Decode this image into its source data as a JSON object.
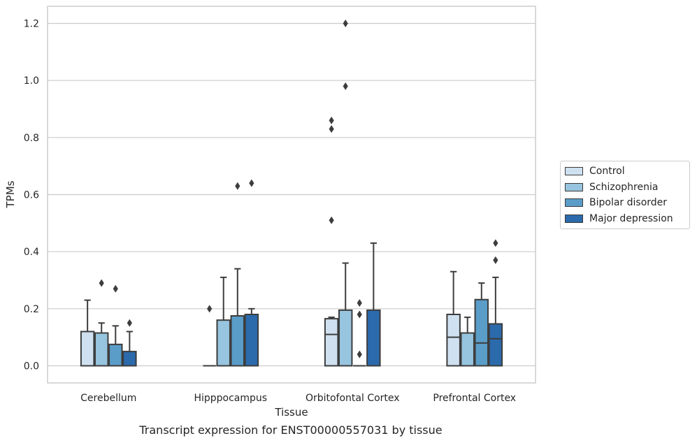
{
  "caption": "Transcript expression for ENST00000557031 by tissue",
  "chart_data": {
    "type": "box",
    "xlabel": "Tissue",
    "ylabel": "TPMs",
    "ylim": [
      -0.06,
      1.26
    ],
    "yticks": [
      0.0,
      0.2,
      0.4,
      0.6,
      0.8,
      1.0,
      1.2
    ],
    "ytick_labels": [
      "0.0",
      "0.2",
      "0.4",
      "0.6",
      "0.8",
      "1.0",
      "1.2"
    ],
    "grid": "horizontal",
    "legend_position": "right",
    "categories": [
      "Cerebellum",
      "Hipppocampus",
      "Orbitofontal Cortex",
      "Prefrontal Cortex"
    ],
    "series": [
      {
        "name": "Control",
        "color": "#cfe1f0",
        "boxes": [
          {
            "q1": 0.0,
            "median": 0.0,
            "q3": 0.12,
            "whisker_low": 0.0,
            "whisker_high": 0.23,
            "outliers": []
          },
          {
            "q1": 0.0,
            "median": 0.0,
            "q3": 0.0,
            "whisker_low": 0.0,
            "whisker_high": 0.0,
            "outliers": [
              0.2
            ]
          },
          {
            "q1": 0.0,
            "median": 0.11,
            "q3": 0.165,
            "whisker_low": 0.0,
            "whisker_high": 0.17,
            "outliers": [
              0.51,
              0.83,
              0.86
            ]
          },
          {
            "q1": 0.0,
            "median": 0.1,
            "q3": 0.18,
            "whisker_low": 0.0,
            "whisker_high": 0.33,
            "outliers": []
          }
        ]
      },
      {
        "name": "Schizophrenia",
        "color": "#97c4de",
        "boxes": [
          {
            "q1": 0.0,
            "median": 0.0,
            "q3": 0.115,
            "whisker_low": 0.0,
            "whisker_high": 0.15,
            "outliers": [
              0.29
            ]
          },
          {
            "q1": 0.0,
            "median": 0.0,
            "q3": 0.16,
            "whisker_low": 0.0,
            "whisker_high": 0.31,
            "outliers": []
          },
          {
            "q1": 0.0,
            "median": 0.0,
            "q3": 0.195,
            "whisker_low": 0.0,
            "whisker_high": 0.36,
            "outliers": [
              0.98,
              1.2
            ]
          },
          {
            "q1": 0.0,
            "median": 0.0,
            "q3": 0.115,
            "whisker_low": 0.0,
            "whisker_high": 0.17,
            "outliers": []
          }
        ]
      },
      {
        "name": "Bipolar disorder",
        "color": "#5a9dc8",
        "boxes": [
          {
            "q1": 0.0,
            "median": 0.0,
            "q3": 0.075,
            "whisker_low": 0.0,
            "whisker_high": 0.14,
            "outliers": [
              0.27
            ]
          },
          {
            "q1": 0.0,
            "median": 0.0,
            "q3": 0.175,
            "whisker_low": 0.0,
            "whisker_high": 0.34,
            "outliers": [
              0.63
            ]
          },
          {
            "q1": 0.0,
            "median": 0.0,
            "q3": 0.0,
            "whisker_low": 0.0,
            "whisker_high": 0.0,
            "outliers": [
              0.04,
              0.18,
              0.22
            ]
          },
          {
            "q1": 0.0,
            "median": 0.08,
            "q3": 0.232,
            "whisker_low": 0.0,
            "whisker_high": 0.29,
            "outliers": []
          }
        ]
      },
      {
        "name": "Major depression",
        "color": "#2b6aab",
        "boxes": [
          {
            "q1": 0.0,
            "median": 0.0,
            "q3": 0.05,
            "whisker_low": 0.0,
            "whisker_high": 0.12,
            "outliers": [
              0.15
            ]
          },
          {
            "q1": 0.0,
            "median": 0.0,
            "q3": 0.18,
            "whisker_low": 0.0,
            "whisker_high": 0.2,
            "outliers": [
              0.64
            ]
          },
          {
            "q1": 0.0,
            "median": 0.0,
            "q3": 0.195,
            "whisker_low": 0.0,
            "whisker_high": 0.43,
            "outliers": []
          },
          {
            "q1": 0.0,
            "median": 0.095,
            "q3": 0.147,
            "whisker_low": 0.0,
            "whisker_high": 0.31,
            "outliers": [
              0.37,
              0.43
            ]
          }
        ]
      }
    ]
  }
}
